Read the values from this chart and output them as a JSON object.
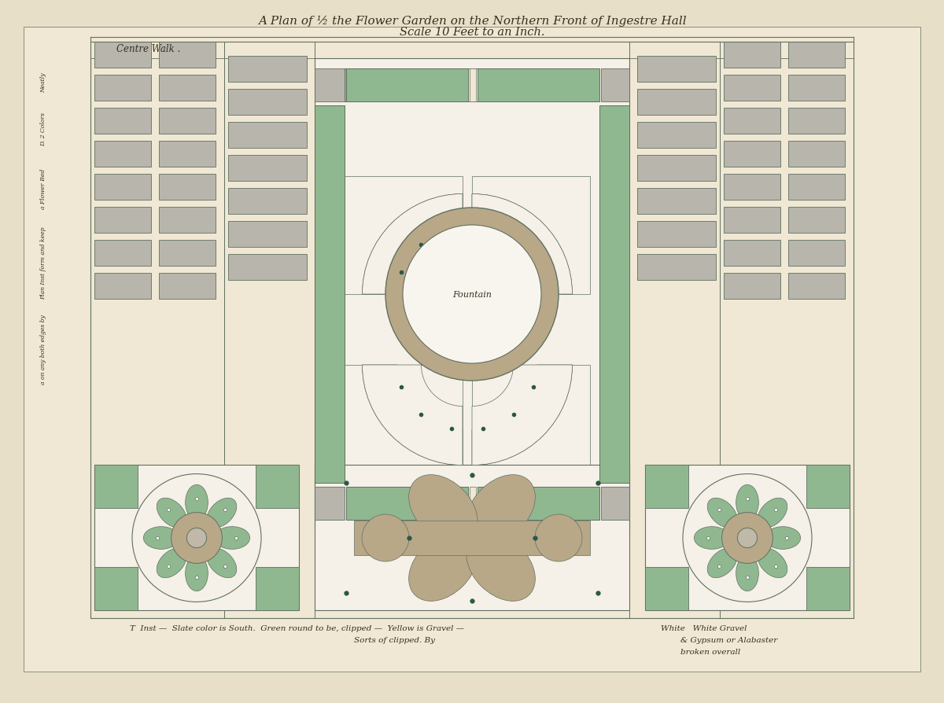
{
  "bg_outer": "#e8dfc8",
  "bg_paper": "#f0e8d4",
  "green": "#90b890",
  "gray_bed": "#b8b5ac",
  "tan": "#b8a888",
  "cream": "#f5f0e8",
  "dark_teal": "#2a5848",
  "line_col": "#607060",
  "title1": "A Plan of ½ the Flower Garden on the Northern Front of Ingestre Hall",
  "title2": "Scale 10 Feet to an Inch.",
  "centre_walk": "Centre Walk .",
  "fountain_lbl": "Fountain",
  "footer1": "T  Inst —  Slate color is South.  Green round to be, clipped —  Yellow is Gravel —",
  "footer1b": "White   White Gravel",
  "footer2": "Sorts of clipped. By",
  "footer3": "& Gypsum or Alabaster",
  "footer4": "broken overall"
}
